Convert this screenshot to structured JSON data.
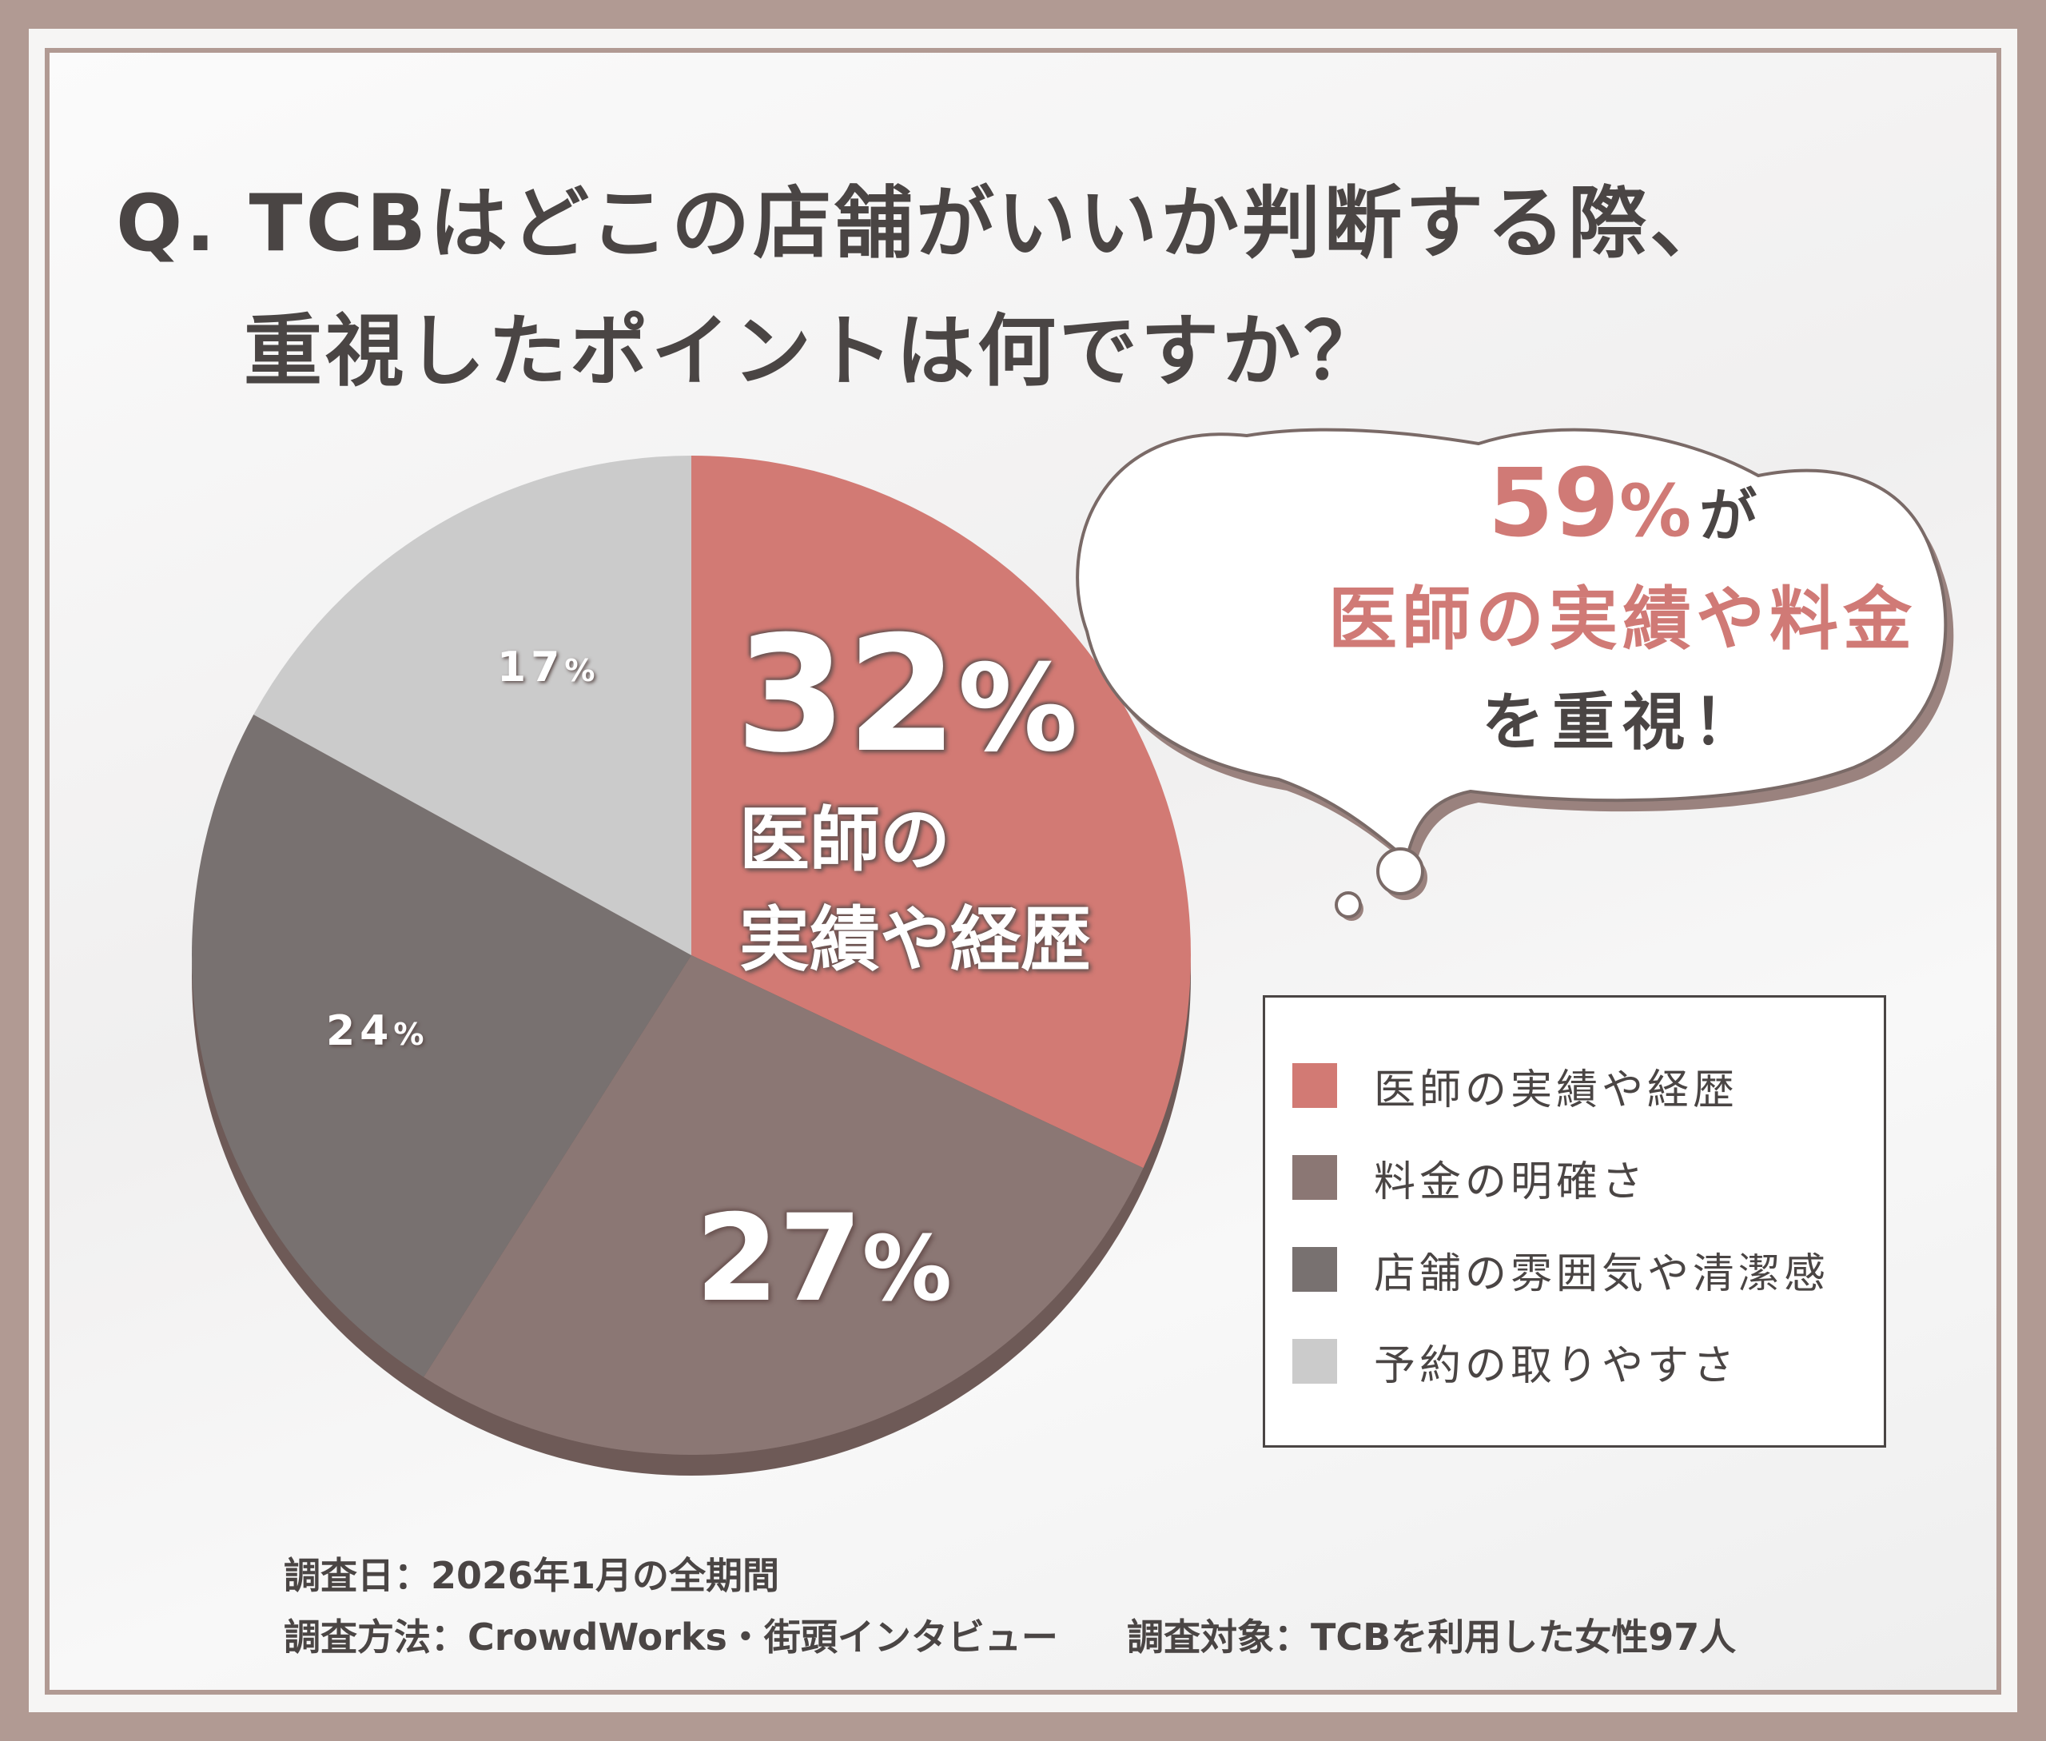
{
  "title": {
    "line1": "Q. TCBはどこの店舗がいいか判断する際、",
    "line2": "重視したポイントは何ですか？"
  },
  "chart_data": {
    "type": "pie",
    "categories": [
      "医師の実績や経歴",
      "料金の明確さ",
      "店舗の雰囲気や清潔感",
      "予約の取りやすさ"
    ],
    "values": [
      32,
      27,
      24,
      17
    ],
    "colors": [
      "#d27a74",
      "#8b7774",
      "#787170",
      "#cbcbcb"
    ],
    "slice_labels": [
      {
        "number": "32",
        "unit": "%",
        "text_line1": "医師の",
        "text_line2": "実績や経歴"
      },
      {
        "number": "27",
        "unit": "%"
      },
      {
        "number": "24",
        "unit": "%"
      },
      {
        "number": "17",
        "unit": "%"
      }
    ],
    "legend": {
      "placement": "right",
      "items": [
        "医師の実績や経歴",
        "料金の明確さ",
        "店舗の雰囲気や清潔感",
        "予約の取りやすさ"
      ]
    }
  },
  "callout": {
    "number": "59",
    "unit": "%",
    "particle": "が",
    "line2": "医師の実績や料金",
    "line3": "を重視！"
  },
  "footer": {
    "survey_date": "調査日：2026年1月の全期間",
    "survey_method": "調査方法：CrowdWorks・街頭インタビュー",
    "survey_target": "調査対象：TCBを利用した女性97人"
  }
}
